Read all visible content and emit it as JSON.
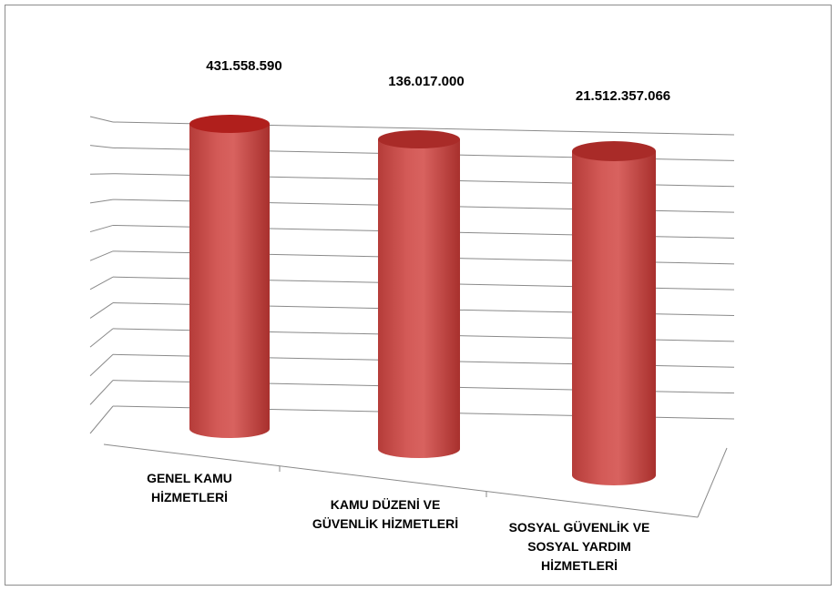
{
  "chart_data": {
    "type": "bar",
    "style": "3d-cylinder",
    "title": "",
    "xlabel": "",
    "ylabel": "",
    "grid": true,
    "legend": "none",
    "bar_color": "#c0504d",
    "bar_color_top": "#a92b28",
    "categories": [
      "GENEL KAMU HİZMETLERİ",
      "KAMU DÜZENİ VE GÜVENLİK HİZMETLERİ",
      "SOSYAL GÜVENLİK VE SOSYAL YARDIM HİZMETLERİ"
    ],
    "category_lines": [
      [
        "GENEL KAMU",
        "HİZMETLERİ"
      ],
      [
        "KAMU DÜZENİ VE",
        "GÜVENLİK HİZMETLERİ"
      ],
      [
        "SOSYAL GÜVENLİK VE",
        "SOSYAL YARDIM",
        "HİZMETLERİ"
      ]
    ],
    "data_labels": [
      "431.558.590",
      "136.017.000",
      "21.512.357.066"
    ],
    "values": [
      431558590,
      136017000,
      21512357066
    ]
  }
}
